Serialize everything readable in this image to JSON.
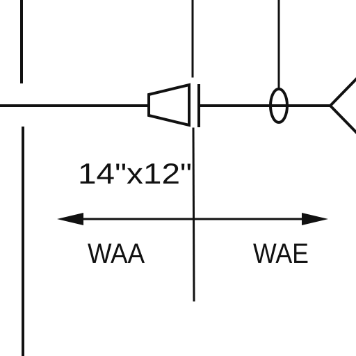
{
  "drawing": {
    "pipe_size_label": "14\"x12\"",
    "zone_left_label": "WAA",
    "zone_right_label": "WAE",
    "line_color": "#111111",
    "background_color": "#ffffff"
  }
}
